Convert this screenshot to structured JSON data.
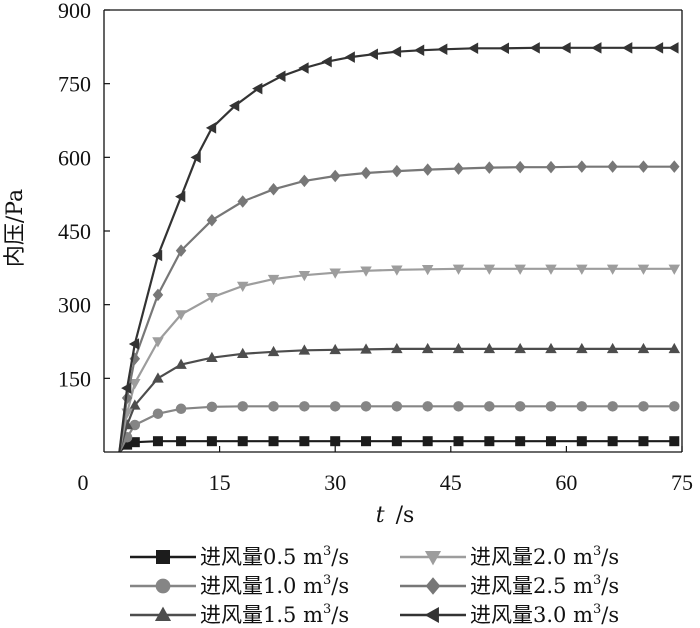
{
  "chart_data": {
    "type": "line",
    "title": "",
    "xlabel_var": "t",
    "xlabel_unit": "/s",
    "ylabel": "内压/Pa",
    "xlim": [
      0,
      75
    ],
    "ylim": [
      0,
      900
    ],
    "xticks": [
      0,
      15,
      30,
      45,
      60,
      75
    ],
    "yticks": [
      150,
      300,
      450,
      600,
      750,
      900
    ],
    "grid": false,
    "legend_position": "bottom",
    "series": [
      {
        "name": "进风量0.5 m³/s",
        "label_main": "进风量0.5 m",
        "label_sup": "3",
        "label_tail": "/s",
        "marker": "square",
        "color": "#1c1c1c",
        "x": [
          2,
          3,
          4,
          7,
          10,
          14,
          18,
          22,
          26,
          30,
          34,
          38,
          42,
          46,
          50,
          54,
          58,
          62,
          66,
          70,
          74
        ],
        "y": [
          0,
          15,
          20,
          22,
          22,
          22,
          22,
          22,
          22,
          22,
          22,
          22,
          22,
          22,
          22,
          22,
          22,
          22,
          22,
          22,
          22
        ]
      },
      {
        "name": "进风量1.0 m³/s",
        "label_main": "进风量1.0 m",
        "label_sup": "3",
        "label_tail": "/s",
        "marker": "circle",
        "color": "#858585",
        "x": [
          2,
          3,
          4,
          7,
          10,
          14,
          18,
          22,
          26,
          30,
          34,
          38,
          42,
          46,
          50,
          54,
          58,
          62,
          66,
          70,
          74
        ],
        "y": [
          0,
          30,
          55,
          78,
          88,
          92,
          93,
          93,
          93,
          93,
          93,
          93,
          93,
          93,
          93,
          93,
          93,
          93,
          93,
          93,
          93
        ]
      },
      {
        "name": "进风量1.5 m³/s",
        "label_main": "进风量1.5 m",
        "label_sup": "3",
        "label_tail": "/s",
        "marker": "triangle-up",
        "color": "#4d4d4d",
        "x": [
          2,
          3,
          4,
          7,
          10,
          14,
          18,
          22,
          26,
          30,
          34,
          38,
          42,
          46,
          50,
          54,
          58,
          62,
          66,
          70,
          74
        ],
        "y": [
          0,
          55,
          95,
          150,
          178,
          192,
          200,
          204,
          207,
          208,
          209,
          210,
          210,
          210,
          210,
          210,
          210,
          210,
          210,
          210,
          210
        ]
      },
      {
        "name": "进风量2.0 m³/s",
        "label_main": "进风量2.0 m",
        "label_sup": "3",
        "label_tail": "/s",
        "marker": "triangle-down",
        "color": "#9d9d9d",
        "x": [
          2,
          3,
          4,
          7,
          10,
          14,
          18,
          22,
          26,
          30,
          34,
          38,
          42,
          46,
          50,
          54,
          58,
          62,
          66,
          70,
          74
        ],
        "y": [
          0,
          80,
          140,
          225,
          280,
          315,
          338,
          352,
          360,
          365,
          369,
          371,
          372,
          373,
          373,
          373,
          373,
          373,
          373,
          373,
          373
        ]
      },
      {
        "name": "进风量2.5 m³/s",
        "label_main": "进风量2.5 m",
        "label_sup": "3",
        "label_tail": "/s",
        "marker": "diamond",
        "color": "#777777",
        "x": [
          2,
          3,
          4,
          7,
          10,
          14,
          18,
          22,
          26,
          30,
          34,
          38,
          42,
          46,
          50,
          54,
          58,
          62,
          66,
          70,
          74
        ],
        "y": [
          0,
          110,
          190,
          320,
          410,
          472,
          510,
          535,
          552,
          562,
          568,
          572,
          575,
          577,
          579,
          580,
          580,
          581,
          581,
          581,
          581
        ]
      },
      {
        "name": "进风量3.0 m³/s",
        "label_main": "进风量3.0 m",
        "label_sup": "3",
        "label_tail": "/s",
        "marker": "triangle-left",
        "color": "#333333",
        "x": [
          2,
          3,
          4,
          7,
          10,
          12,
          14,
          17,
          20,
          23,
          26,
          29,
          32,
          35,
          38,
          41,
          44,
          48,
          52,
          56,
          60,
          64,
          68,
          72,
          74
        ],
        "y": [
          0,
          130,
          220,
          400,
          520,
          600,
          660,
          705,
          740,
          765,
          782,
          795,
          804,
          810,
          815,
          818,
          820,
          822,
          822,
          823,
          823,
          823,
          823,
          823,
          823
        ]
      }
    ]
  }
}
